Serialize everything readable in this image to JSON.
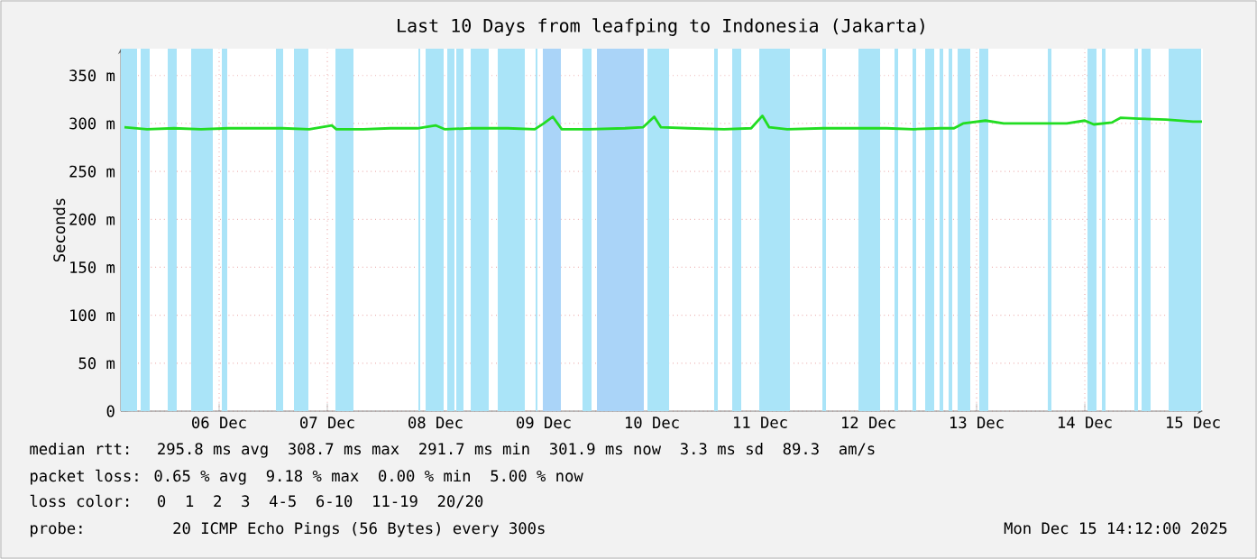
{
  "chart_data": {
    "type": "line",
    "title": "Last 10 Days from leafping to Indonesia (Jakarta)",
    "ylabel": "Seconds",
    "x": [
      "2025-12-05T15:00",
      "2025-12-05T20:00",
      "2025-12-06T02:00",
      "2025-12-06T08:00",
      "2025-12-06T14:00",
      "2025-12-06T20:00",
      "2025-12-07T02:00",
      "2025-12-07T08:00",
      "2025-12-07T13:00",
      "2025-12-07T14:00",
      "2025-12-07T20:00",
      "2025-12-08T02:00",
      "2025-12-08T08:00",
      "2025-12-08T12:00",
      "2025-12-08T14:00",
      "2025-12-08T20:00",
      "2025-12-09T04:00",
      "2025-12-09T10:00",
      "2025-12-09T12:00",
      "2025-12-09T14:00",
      "2025-12-09T16:00",
      "2025-12-09T22:00",
      "2025-12-10T06:00",
      "2025-12-10T10:00",
      "2025-12-10T12:30",
      "2025-12-10T14:00",
      "2025-12-10T20:00",
      "2025-12-11T04:00",
      "2025-12-11T10:00",
      "2025-12-11T12:30",
      "2025-12-11T14:00",
      "2025-12-11T18:00",
      "2025-12-12T02:00",
      "2025-12-12T10:00",
      "2025-12-12T16:00",
      "2025-12-12T22:00",
      "2025-12-13T04:00",
      "2025-12-13T07:00",
      "2025-12-13T09:00",
      "2025-12-13T14:00",
      "2025-12-13T18:00",
      "2025-12-14T02:00",
      "2025-12-14T08:00",
      "2025-12-14T12:00",
      "2025-12-14T14:00",
      "2025-12-14T18:00",
      "2025-12-14T20:00",
      "2025-12-15T00:00",
      "2025-12-15T06:00",
      "2025-12-15T12:00",
      "2025-12-15T14:00"
    ],
    "series": [
      {
        "color": "#22dd22",
        "values": [
          296,
          294,
          295,
          294,
          295,
          295,
          295,
          294,
          298,
          294,
          294,
          295,
          295,
          298,
          294,
          295,
          295,
          294,
          300,
          307,
          294,
          294,
          295,
          296,
          307,
          296,
          295,
          294,
          295,
          308,
          296,
          294,
          295,
          295,
          295,
          294,
          295,
          295,
          300,
          303,
          300,
          300,
          300,
          303,
          299,
          301,
          306,
          305,
          304,
          302,
          302
        ]
      }
    ],
    "xlim": [
      "2025-12-05T14:12",
      "2025-12-15T14:12"
    ],
    "xticks": [
      {
        "value": "2025-12-06T12:00",
        "label": "06 Dec"
      },
      {
        "value": "2025-12-07T12:00",
        "label": "07 Dec"
      },
      {
        "value": "2025-12-08T12:00",
        "label": "08 Dec"
      },
      {
        "value": "2025-12-09T12:00",
        "label": "09 Dec"
      },
      {
        "value": "2025-12-10T12:00",
        "label": "10 Dec"
      },
      {
        "value": "2025-12-11T12:00",
        "label": "11 Dec"
      },
      {
        "value": "2025-12-12T12:00",
        "label": "12 Dec"
      },
      {
        "value": "2025-12-13T12:00",
        "label": "13 Dec"
      },
      {
        "value": "2025-12-14T12:00",
        "label": "14 Dec"
      },
      {
        "value": "2025-12-15T12:00",
        "label": "15 Dec"
      }
    ],
    "ylim": [
      0,
      378
    ],
    "yticks": [
      0,
      {
        "value": 50,
        "label": "50 m"
      },
      {
        "value": 100,
        "label": "100 m"
      },
      {
        "value": 150,
        "label": "150 m"
      },
      {
        "value": 200,
        "label": "200 m"
      },
      {
        "value": 250,
        "label": "250 m"
      },
      {
        "value": 300,
        "label": "300 m"
      },
      {
        "value": 350,
        "label": "350 m"
      }
    ],
    "grid": true,
    "marker": "none",
    "line_style": "solid",
    "bands": [
      {
        "axis": "x",
        "from": "2025-12-05T14:12",
        "to": "2025-12-05T17:48",
        "color": "#aae4f8"
      },
      {
        "axis": "x",
        "from": "2025-12-05T18:36",
        "to": "2025-12-05T20:36",
        "color": "#aae4f8"
      },
      {
        "axis": "x",
        "from": "2025-12-06T00:36",
        "to": "2025-12-06T02:36",
        "color": "#aae4f8"
      },
      {
        "axis": "x",
        "from": "2025-12-06T05:48",
        "to": "2025-12-06T10:36",
        "color": "#aae4f8"
      },
      {
        "axis": "x",
        "from": "2025-12-06T12:36",
        "to": "2025-12-06T13:48",
        "color": "#aae4f8"
      },
      {
        "axis": "x",
        "from": "2025-12-07T00:36",
        "to": "2025-12-07T02:12",
        "color": "#aae4f8"
      },
      {
        "axis": "x",
        "from": "2025-12-07T04:36",
        "to": "2025-12-07T07:48",
        "color": "#aae4f8"
      },
      {
        "axis": "x",
        "from": "2025-12-07T13:48",
        "to": "2025-12-07T17:48",
        "color": "#aae4f8"
      },
      {
        "axis": "x",
        "from": "2025-12-08T08:12",
        "to": "2025-12-08T08:36",
        "color": "#aae4f8"
      },
      {
        "axis": "x",
        "from": "2025-12-08T09:48",
        "to": "2025-12-08T13:48",
        "color": "#aae4f8"
      },
      {
        "axis": "x",
        "from": "2025-12-08T14:36",
        "to": "2025-12-08T16:12",
        "color": "#aae4f8"
      },
      {
        "axis": "x",
        "from": "2025-12-08T16:36",
        "to": "2025-12-08T18:12",
        "color": "#aae4f8"
      },
      {
        "axis": "x",
        "from": "2025-12-08T19:48",
        "to": "2025-12-08T23:48",
        "color": "#aae4f8"
      },
      {
        "axis": "x",
        "from": "2025-12-09T01:48",
        "to": "2025-12-09T07:48",
        "color": "#aae4f8"
      },
      {
        "axis": "x",
        "from": "2025-12-09T10:12",
        "to": "2025-12-09T10:36",
        "color": "#aae4f8"
      },
      {
        "axis": "x",
        "from": "2025-12-09T11:48",
        "to": "2025-12-09T15:48",
        "color": "#aad4f8"
      },
      {
        "axis": "x",
        "from": "2025-12-09T20:36",
        "to": "2025-12-09T22:36",
        "color": "#aae4f8"
      },
      {
        "axis": "x",
        "from": "2025-12-09T23:48",
        "to": "2025-12-10T10:12",
        "color": "#aad4f8"
      },
      {
        "axis": "x",
        "from": "2025-12-10T11:00",
        "to": "2025-12-10T15:48",
        "color": "#aae4f8"
      },
      {
        "axis": "x",
        "from": "2025-12-11T01:48",
        "to": "2025-12-11T02:36",
        "color": "#aae4f8"
      },
      {
        "axis": "x",
        "from": "2025-12-11T05:48",
        "to": "2025-12-11T07:48",
        "color": "#aae4f8"
      },
      {
        "axis": "x",
        "from": "2025-12-11T11:48",
        "to": "2025-12-11T18:36",
        "color": "#aae4f8"
      },
      {
        "axis": "x",
        "from": "2025-12-12T01:48",
        "to": "2025-12-12T02:36",
        "color": "#aae4f8"
      },
      {
        "axis": "x",
        "from": "2025-12-12T09:48",
        "to": "2025-12-12T14:36",
        "color": "#aae4f8"
      },
      {
        "axis": "x",
        "from": "2025-12-12T17:48",
        "to": "2025-12-12T18:36",
        "color": "#aae4f8"
      },
      {
        "axis": "x",
        "from": "2025-12-12T21:48",
        "to": "2025-12-12T22:36",
        "color": "#aae4f8"
      },
      {
        "axis": "x",
        "from": "2025-12-13T00:36",
        "to": "2025-12-13T02:36",
        "color": "#aae4f8"
      },
      {
        "axis": "x",
        "from": "2025-12-13T03:48",
        "to": "2025-12-13T04:36",
        "color": "#aae4f8"
      },
      {
        "axis": "x",
        "from": "2025-12-13T05:48",
        "to": "2025-12-13T06:36",
        "color": "#aae4f8"
      },
      {
        "axis": "x",
        "from": "2025-12-13T07:48",
        "to": "2025-12-13T10:36",
        "color": "#aae4f8"
      },
      {
        "axis": "x",
        "from": "2025-12-13T12:36",
        "to": "2025-12-13T14:36",
        "color": "#aae4f8"
      },
      {
        "axis": "x",
        "from": "2025-12-14T03:48",
        "to": "2025-12-14T04:36",
        "color": "#aae4f8"
      },
      {
        "axis": "x",
        "from": "2025-12-14T12:36",
        "to": "2025-12-14T14:36",
        "color": "#aae4f8"
      },
      {
        "axis": "x",
        "from": "2025-12-14T15:48",
        "to": "2025-12-14T16:36",
        "color": "#aae4f8"
      },
      {
        "axis": "x",
        "from": "2025-12-14T23:00",
        "to": "2025-12-14T23:48",
        "color": "#aae4f8"
      },
      {
        "axis": "x",
        "from": "2025-12-15T00:36",
        "to": "2025-12-15T02:36",
        "color": "#aae4f8"
      },
      {
        "axis": "x",
        "from": "2025-12-15T06:36",
        "to": "2025-12-15T13:48",
        "color": "#aae4f8"
      }
    ],
    "annotations": [
      "median rtt:  295.8 ms avg  308.7 ms max  291.7 ms min  301.9 ms now  3.3 ms sd  89.3  am/s",
      "packet loss: 0.65 % avg  9.18 % max  0.00 % min  5.00 % now",
      "loss color:  0  1  2  3  4-5  6-10  11-19  20/20",
      "probe:       20 ICMP Echo Pings (56 Bytes) every 300s",
      "Mon Dec 15 14:12:00 2025"
    ]
  }
}
